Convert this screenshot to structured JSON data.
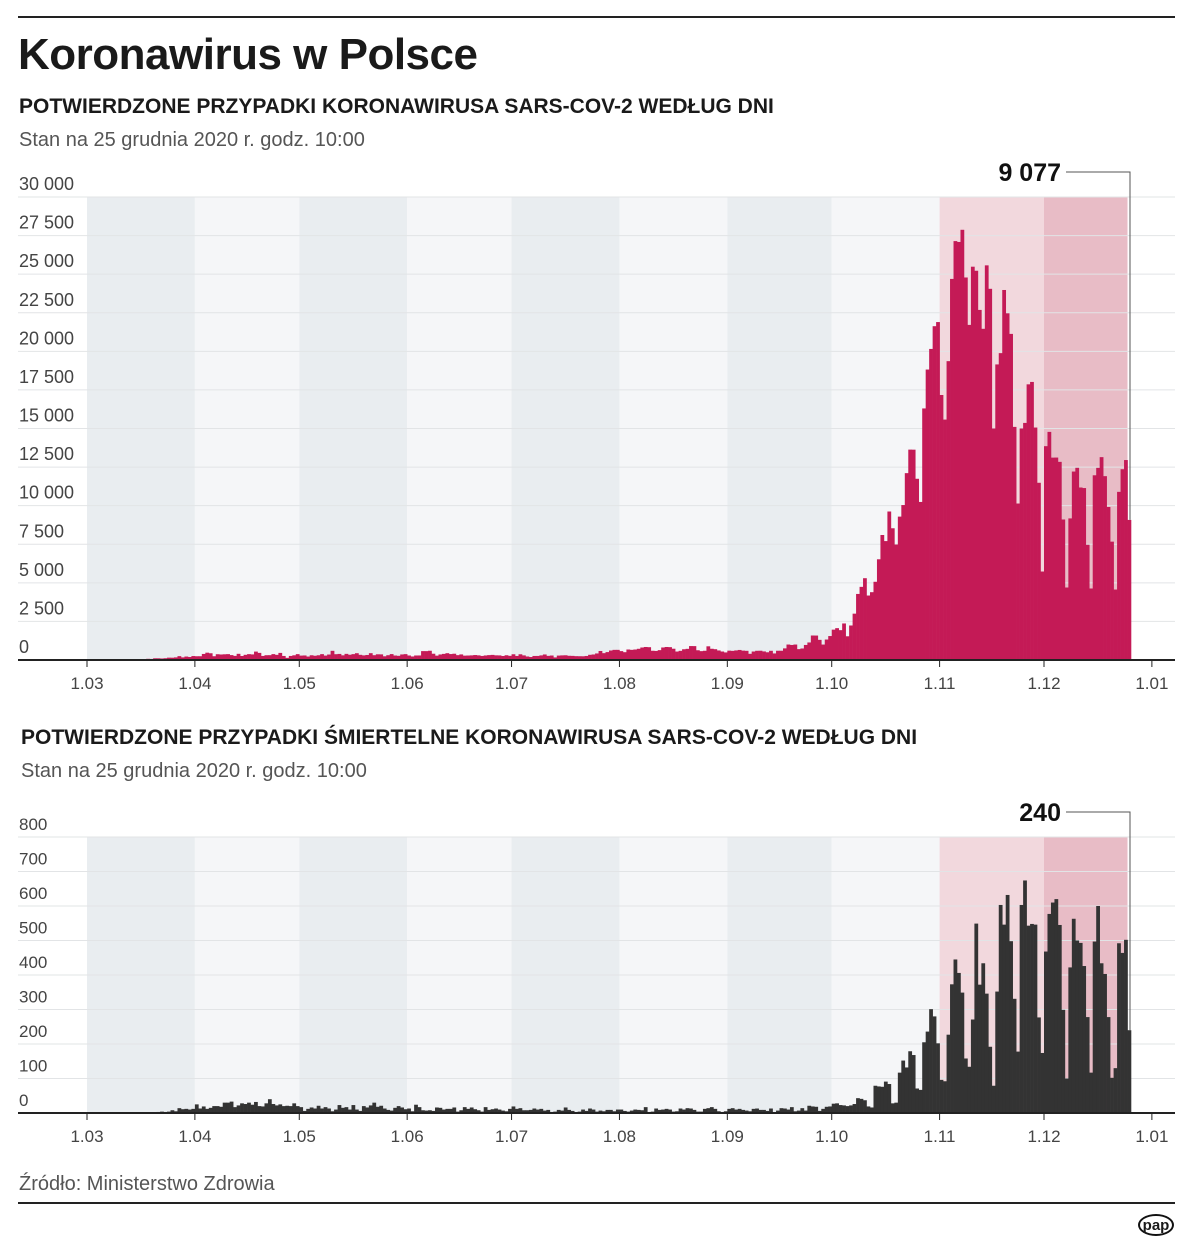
{
  "title": "Koronawirus w Polsce",
  "source": "Źródło: Ministerstwo Zdrowia",
  "logo": "pap",
  "colors": {
    "cases": "#c41a56",
    "deaths": "#333333",
    "band_dark": "#e9edf0",
    "band_light": "#f5f6f8",
    "band_nov": "#f2d8dd",
    "band_dec": "#e8bcc6",
    "grid": "#e2e4e6"
  },
  "chart_data": [
    {
      "type": "bar",
      "title": "POTWIERDZONE PRZYPADKI KORONAWIRUSA SARS-COV-2 WEDŁUG DNI",
      "subtitle": "Stan na 25 grudnia 2020 r. godz. 10:00",
      "start_date": "2020-03-04",
      "end_date": "2020-12-25",
      "ylim": [
        0,
        30000
      ],
      "yticks": [
        0,
        2500,
        5000,
        7500,
        10000,
        12500,
        15000,
        17500,
        20000,
        22500,
        25000,
        27500,
        30000
      ],
      "ytick_labels": [
        "0",
        "2 500",
        "5 000",
        "7 500",
        "10 000",
        "12 500",
        "15 000",
        "17 500",
        "20 000",
        "22 500",
        "25 000",
        "27 500",
        "30 000"
      ],
      "xtick_labels": [
        "1.03",
        "1.04",
        "1.05",
        "1.06",
        "1.07",
        "1.08",
        "1.09",
        "1.10",
        "1.11",
        "1.12",
        "1.01"
      ],
      "annotation": "9 077",
      "values": [
        1,
        0,
        4,
        1,
        5,
        6,
        5,
        9,
        20,
        17,
        36,
        14,
        52,
        27,
        78,
        70,
        111,
        111,
        98,
        115,
        152,
        150,
        170,
        249,
        170,
        224,
        193,
        256,
        243,
        244,
        392,
        475,
        437,
        244,
        374,
        357,
        370,
        380,
        318,
        268,
        401,
        260,
        336,
        380,
        363,
        545,
        461,
        263,
        310,
        313,
        381,
        334,
        460,
        262,
        140,
        263,
        305,
        380,
        285,
        294,
        224,
        307,
        275,
        307,
        380,
        286,
        354,
        595,
        375,
        394,
        303,
        398,
        341,
        380,
        440,
        335,
        299,
        325,
        442,
        311,
        369,
        365,
        241,
        310,
        383,
        290,
        271,
        360,
        380,
        292,
        230,
        292,
        294,
        576,
        575,
        599,
        407,
        282,
        359,
        396,
        441,
        385,
        407,
        314,
        362,
        283,
        290,
        300,
        321,
        301,
        263,
        294,
        316,
        331,
        302,
        298,
        260,
        308,
        270,
        371,
        262,
        371,
        299,
        229,
        193,
        262,
        263,
        299,
        358,
        268,
        290,
        167,
        286,
        299,
        306,
        273,
        267,
        249,
        245,
        241,
        261,
        337,
        358,
        424,
        584,
        443,
        512,
        615,
        657,
        658,
        575,
        506,
        680,
        658,
        680,
        726,
        809,
        843,
        830,
        599,
        587,
        639,
        811,
        843,
        832,
        731,
        548,
        594,
        696,
        723,
        903,
        900,
        631,
        574,
        597,
        887,
        728,
        700,
        618,
        550,
        491,
        605,
        592,
        621,
        651,
        608,
        595,
        401,
        550,
        597,
        601,
        555,
        500,
        597,
        425,
        600,
        600,
        753,
        1002,
        974,
        1002,
        704,
        746,
        975,
        1136,
        1587,
        1584,
        1306,
        1001,
        1326,
        1552,
        1967,
        2063,
        1934,
        2367,
        1537,
        2236,
        3003,
        4280,
        4739,
        5300,
        4178,
        4394,
        5068,
        6526,
        8099,
        7705,
        9622,
        8536,
        7482,
        9291,
        10040,
        12107,
        13632,
        13628,
        11742,
        10241,
        16300,
        18820,
        20156,
        21629,
        21897,
        17171,
        15578,
        19364,
        24692,
        27143,
        27086,
        27875,
        24785,
        21713,
        25484,
        25221,
        22683,
        21460,
        25571,
        24051,
        15002,
        19152,
        19883,
        23975,
        22464,
        21130,
        15104,
        10139,
        15002,
        15362,
        17862,
        18017,
        15062,
        11483,
        5733,
        13855,
        14780,
        13113,
        13117,
        12839,
        9105,
        4697,
        9174,
        12211,
        12454,
        11177,
        11141,
        7467,
        4633,
        11969,
        12451,
        13144,
        11912,
        9913,
        7669,
        4566,
        10895,
        12361,
        12956,
        9077
      ]
    },
    {
      "type": "bar",
      "title": "POTWIERDZONE PRZYPADKI ŚMIERTELNE KORONAWIRUSA SARS-COV-2 WEDŁUG DNI",
      "subtitle": "Stan na 25 grudnia 2020 r. godz. 10:00",
      "start_date": "2020-03-04",
      "end_date": "2020-12-25",
      "ylim": [
        0,
        800
      ],
      "yticks": [
        0,
        100,
        200,
        300,
        400,
        500,
        600,
        700,
        800
      ],
      "ytick_labels": [
        "0",
        "100",
        "200",
        "300",
        "400",
        "500",
        "600",
        "700",
        "800"
      ],
      "xtick_labels": [
        "1.03",
        "1.04",
        "1.05",
        "1.06",
        "1.07",
        "1.08",
        "1.09",
        "1.10",
        "1.11",
        "1.12",
        "1.01"
      ],
      "annotation": "240",
      "values": [
        0,
        0,
        0,
        0,
        0,
        0,
        0,
        1,
        1,
        0,
        1,
        0,
        2,
        1,
        0,
        1,
        2,
        3,
        4,
        3,
        4,
        8,
        5,
        14,
        11,
        12,
        10,
        12,
        25,
        13,
        19,
        12,
        15,
        20,
        20,
        18,
        30,
        30,
        33,
        17,
        22,
        28,
        26,
        30,
        24,
        32,
        20,
        19,
        28,
        40,
        26,
        22,
        25,
        20,
        21,
        20,
        28,
        20,
        17,
        6,
        12,
        16,
        13,
        21,
        13,
        17,
        13,
        5,
        10,
        23,
        15,
        17,
        10,
        23,
        10,
        6,
        20,
        16,
        22,
        30,
        18,
        21,
        13,
        9,
        7,
        15,
        20,
        16,
        11,
        13,
        5,
        24,
        17,
        8,
        7,
        8,
        6,
        16,
        15,
        10,
        12,
        12,
        16,
        4,
        8,
        17,
        12,
        16,
        11,
        8,
        4,
        17,
        9,
        11,
        13,
        10,
        7,
        5,
        12,
        19,
        12,
        14,
        8,
        8,
        9,
        13,
        10,
        12,
        7,
        9,
        3,
        4,
        9,
        7,
        16,
        9,
        6,
        1,
        4,
        10,
        6,
        13,
        10,
        4,
        7,
        5,
        9,
        9,
        5,
        10,
        10,
        6,
        4,
        7,
        10,
        9,
        8,
        17,
        3,
        4,
        13,
        9,
        10,
        12,
        10,
        4,
        5,
        13,
        10,
        14,
        13,
        9,
        4,
        4,
        12,
        14,
        17,
        12,
        5,
        3,
        5,
        12,
        14,
        10,
        12,
        9,
        7,
        5,
        12,
        13,
        9,
        9,
        6,
        13,
        2,
        7,
        14,
        13,
        10,
        17,
        5,
        7,
        14,
        7,
        21,
        19,
        18,
        6,
        12,
        18,
        19,
        27,
        28,
        23,
        22,
        20,
        22,
        26,
        43,
        41,
        37,
        19,
        16,
        79,
        77,
        76,
        91,
        84,
        28,
        30,
        117,
        152,
        132,
        179,
        168,
        71,
        67,
        205,
        236,
        301,
        280,
        202,
        96,
        92,
        227,
        373,
        445,
        406,
        349,
        158,
        134,
        271,
        549,
        372,
        434,
        346,
        192,
        79,
        352,
        603,
        546,
        632,
        498,
        331,
        178,
        603,
        674,
        543,
        548,
        546,
        277,
        174,
        468,
        577,
        610,
        620,
        545,
        299,
        100,
        422,
        563,
        500,
        493,
        426,
        278,
        117,
        497,
        600,
        434,
        403,
        278,
        102,
        130,
        492,
        464,
        502,
        240
      ]
    }
  ]
}
